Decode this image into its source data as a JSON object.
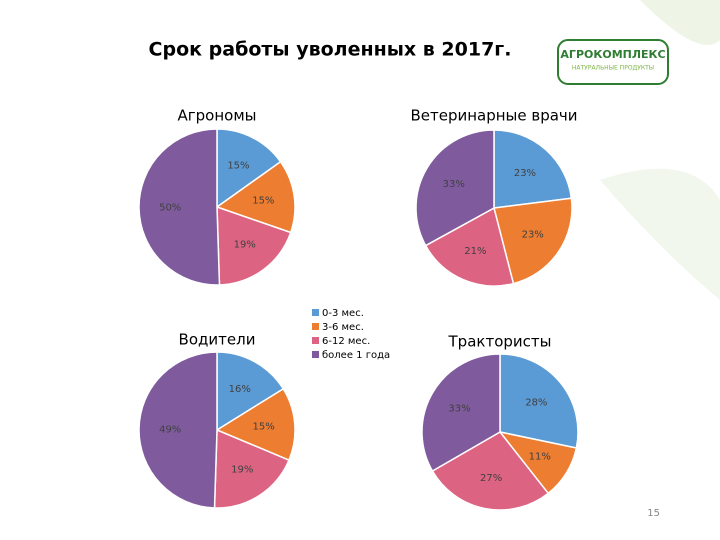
{
  "title": "Срок работы уволенных в 2017г.",
  "logo": {
    "name": "АГРОКОМПЛЕКС",
    "tagline": "НАТУРАЛЬНЫЕ ПРОДУКТЫ"
  },
  "page_number": "15",
  "legend": {
    "labels": [
      "0-3 мес.",
      "3-6 мес.",
      "6-12 мес.",
      "более 1 года"
    ],
    "colors": [
      "#5b9bd5",
      "#ed7d31",
      "#dc6482",
      "#7f5b9e"
    ]
  },
  "chart_data": [
    {
      "type": "pie",
      "title": "Агрономы",
      "values": [
        15,
        15,
        19,
        50
      ],
      "value_labels": [
        "15%",
        "15%",
        "19%",
        "50%"
      ]
    },
    {
      "type": "pie",
      "title": "Ветеринарные врачи",
      "values": [
        23,
        23,
        21,
        33
      ],
      "value_labels": [
        "23%",
        "23%",
        "21%",
        "33%"
      ]
    },
    {
      "type": "pie",
      "title": "Водители",
      "values": [
        16,
        15,
        19,
        49
      ],
      "value_labels": [
        "16%",
        "15%",
        "19%",
        "49%"
      ]
    },
    {
      "type": "pie",
      "title": "Трактористы",
      "values": [
        28,
        11,
        27,
        33
      ],
      "value_labels": [
        "28%",
        "11%",
        "27%",
        "33%"
      ]
    }
  ]
}
